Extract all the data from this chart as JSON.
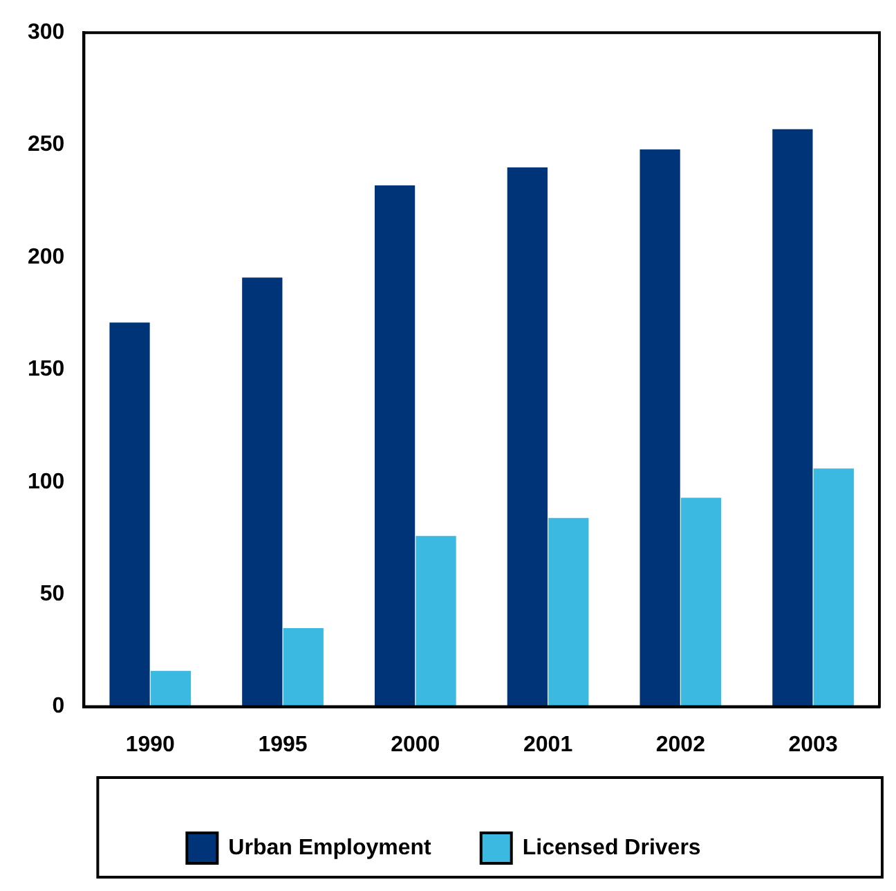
{
  "chart_data": {
    "type": "bar",
    "categories": [
      "1990",
      "1995",
      "2000",
      "2001",
      "2002",
      "2003"
    ],
    "series": [
      {
        "name": "Urban Employment",
        "color": "#003478",
        "values": [
          171,
          191,
          232,
          240,
          248,
          257
        ]
      },
      {
        "name": "Licensed Drivers",
        "color": "#3bb9e1",
        "values": [
          16,
          35,
          76,
          84,
          93,
          106
        ]
      }
    ],
    "ylim": [
      0,
      300
    ],
    "yticks": [
      0,
      50,
      100,
      150,
      200,
      250,
      300
    ],
    "grid": false,
    "legend": "bottom"
  }
}
